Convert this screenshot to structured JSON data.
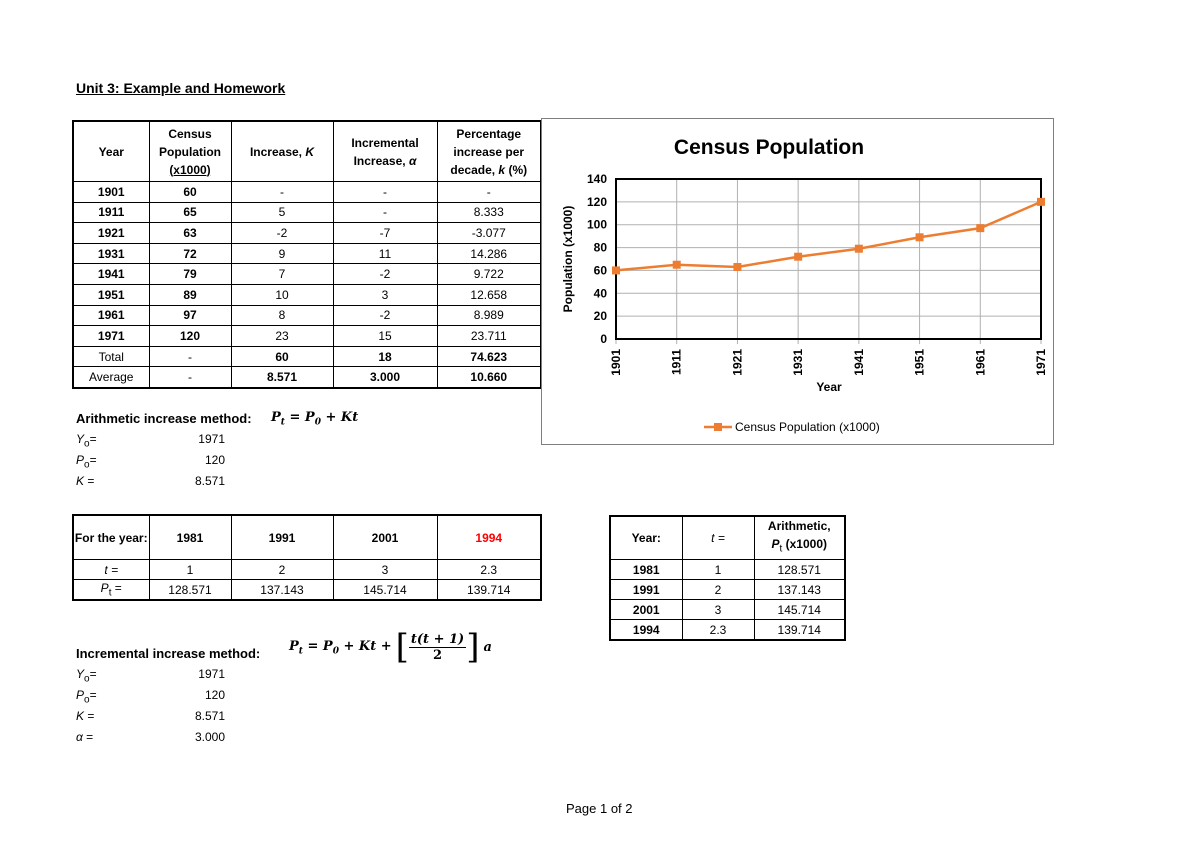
{
  "document": {
    "title": "Unit 3: Example and Homework",
    "footer": "Page 1 of 2"
  },
  "main_table": {
    "headers": [
      "Year",
      "Census Population (x1000)",
      "Increase, K",
      "Incremental Increase, α",
      "Percentage increase per decade, k (%)"
    ],
    "header_lines": {
      "year": "Year",
      "census_1": "Census",
      "census_2": "Population",
      "census_3": "(x1000)",
      "increase": "Increase, ",
      "increase_var": "K",
      "incremental_1": "Incremental",
      "incremental_2": "Increase, ",
      "incremental_var": "α",
      "pct_1": "Percentage",
      "pct_2": "increase per",
      "pct_3": "decade, ",
      "pct_var": "k",
      "pct_unit": " (%)"
    },
    "rows": [
      [
        "1901",
        "60",
        "-",
        "-",
        "-"
      ],
      [
        "1911",
        "65",
        "5",
        "-",
        "8.333"
      ],
      [
        "1921",
        "63",
        "-2",
        "-7",
        "-3.077"
      ],
      [
        "1931",
        "72",
        "9",
        "11",
        "14.286"
      ],
      [
        "1941",
        "79",
        "7",
        "-2",
        "9.722"
      ],
      [
        "1951",
        "89",
        "10",
        "3",
        "12.658"
      ],
      [
        "1961",
        "97",
        "8",
        "-2",
        "8.989"
      ],
      [
        "1971",
        "120",
        "23",
        "15",
        "23.711"
      ]
    ],
    "total": [
      "Total",
      "-",
      "60",
      "18",
      "74.623"
    ],
    "average": [
      "Average",
      "-",
      "8.571",
      "3.000",
      "10.660"
    ]
  },
  "arithmetic": {
    "label": "Arithmetic increase method:",
    "formula": "Pt = P0 + Kt",
    "vars": [
      {
        "name": "Y",
        "sub": "o",
        "eq": "=",
        "value": "1971"
      },
      {
        "name": "P",
        "sub": "o",
        "eq": "=",
        "value": "120"
      },
      {
        "name": "K",
        "sub": "",
        "eq": " =",
        "value": "8.571"
      }
    ]
  },
  "prediction_table": {
    "header_label": "For the year:",
    "years": [
      "1981",
      "1991",
      "2001",
      "1994"
    ],
    "highlight_year_color": "#ff0000",
    "t_label": "t =",
    "t_values": [
      "1",
      "2",
      "3",
      "2.3"
    ],
    "pt_label": "P",
    "pt_sub": "t",
    "pt_eq": " =",
    "pt_values": [
      "128.571",
      "137.143",
      "145.714",
      "139.714"
    ]
  },
  "results_table": {
    "headers": {
      "year": "Year:",
      "t": "t =",
      "arith_1": "Arithmetic,",
      "arith_2_var": "P",
      "arith_2_sub": "t",
      "arith_2_rest": " (x1000)"
    },
    "rows": [
      [
        "1981",
        "1",
        "128.571"
      ],
      [
        "1991",
        "2",
        "137.143"
      ],
      [
        "2001",
        "3",
        "145.714"
      ],
      [
        "1994",
        "2.3",
        "139.714"
      ]
    ]
  },
  "incremental": {
    "label": "Incremental increase method:",
    "formula": "Pt = P0 + Kt + [t(t + 1)/2] a",
    "vars": [
      {
        "name": "Y",
        "sub": "o",
        "eq": "=",
        "value": "1971"
      },
      {
        "name": "P",
        "sub": "o",
        "eq": "=",
        "value": "120"
      },
      {
        "name": "K",
        "sub": "",
        "eq": " =",
        "value": "8.571"
      },
      {
        "name": "α",
        "sub": "",
        "eq": " =",
        "value": "3.000"
      }
    ]
  },
  "chart_data": {
    "type": "line",
    "title": "Census Population",
    "xlabel": "Year",
    "ylabel": "Population (x1000)",
    "categories": [
      "1901",
      "1911",
      "1921",
      "1931",
      "1941",
      "1951",
      "1961",
      "1971"
    ],
    "series": [
      {
        "name": "Census Population (x1000)",
        "values": [
          60,
          65,
          63,
          72,
          79,
          89,
          97,
          120
        ],
        "color": "#ed7d31",
        "marker": "square"
      }
    ],
    "ylim": [
      0,
      140
    ],
    "yticks": [
      0,
      20,
      40,
      60,
      80,
      100,
      120,
      140
    ],
    "grid": true,
    "legend_position": "bottom"
  }
}
